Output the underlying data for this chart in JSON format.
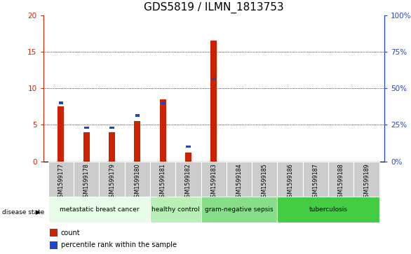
{
  "title": "GDS5819 / ILMN_1813753",
  "samples": [
    "GSM1599177",
    "GSM1599178",
    "GSM1599179",
    "GSM1599180",
    "GSM1599181",
    "GSM1599182",
    "GSM1599183",
    "GSM1599184",
    "GSM1599185",
    "GSM1599186",
    "GSM1599187",
    "GSM1599188",
    "GSM1599189"
  ],
  "red_values": [
    7.5,
    4.0,
    4.0,
    5.5,
    8.5,
    1.2,
    16.5,
    0,
    0,
    0,
    0,
    0,
    0
  ],
  "blue_values_left": [
    8.0,
    4.6,
    4.6,
    6.3,
    8.0,
    2.0,
    11.3,
    0,
    0,
    0,
    0,
    0,
    0
  ],
  "ylim_left": [
    0,
    20
  ],
  "ylim_right": [
    0,
    100
  ],
  "yticks_left": [
    0,
    5,
    10,
    15,
    20
  ],
  "yticks_right": [
    0,
    25,
    50,
    75,
    100
  ],
  "ytick_labels_left": [
    "0",
    "5",
    "10",
    "15",
    "20"
  ],
  "ytick_labels_right": [
    "0%",
    "25%",
    "50%",
    "75%",
    "100%"
  ],
  "disease_groups": [
    {
      "label": "metastatic breast cancer",
      "start": 0,
      "end": 3,
      "color": "#e8fce8"
    },
    {
      "label": "healthy control",
      "start": 4,
      "end": 5,
      "color": "#b8f0b8"
    },
    {
      "label": "gram-negative sepsis",
      "start": 6,
      "end": 8,
      "color": "#88dd88"
    },
    {
      "label": "tuberculosis",
      "start": 9,
      "end": 12,
      "color": "#44cc44"
    }
  ],
  "disease_state_label": "disease state",
  "legend_count": "count",
  "legend_percentile": "percentile rank within the sample",
  "red_color": "#cc2200",
  "blue_color": "#2244cc",
  "sample_box_color": "#cccccc",
  "title_fontsize": 11,
  "tick_fontsize": 7.5,
  "label_fontsize": 5.8,
  "group_fontsize": 6.5,
  "legend_fontsize": 7
}
